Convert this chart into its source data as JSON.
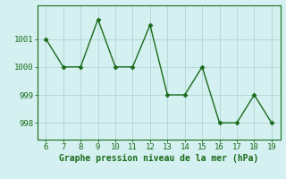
{
  "x": [
    6,
    7,
    8,
    9,
    10,
    11,
    12,
    13,
    14,
    15,
    16,
    17,
    18,
    19
  ],
  "y": [
    1001.0,
    1000.0,
    1000.0,
    1001.7,
    1000.0,
    1000.0,
    1001.5,
    999.0,
    999.0,
    1000.0,
    998.0,
    998.0,
    999.0,
    998.0
  ],
  "xlabel": "Graphe pression niveau de la mer (hPa)",
  "line_color": "#1a6b1a",
  "bg_color": "#d4f0f0",
  "grid_color": "#b8d8d8",
  "yticks": [
    998,
    999,
    1000,
    1001
  ],
  "xticks": [
    6,
    7,
    8,
    9,
    10,
    11,
    12,
    13,
    14,
    15,
    16,
    17,
    18,
    19
  ],
  "ylim": [
    997.4,
    1002.2
  ],
  "xlim": [
    5.5,
    19.5
  ]
}
